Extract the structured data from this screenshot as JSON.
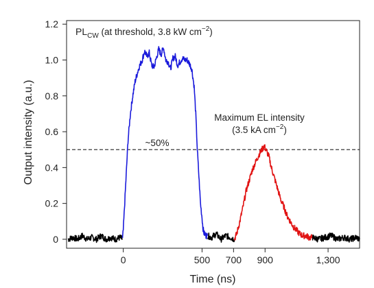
{
  "chart_data": {
    "type": "line",
    "xlabel": "Time (ns)",
    "ylabel": "Output intensity (a.u.)",
    "xlim": [
      -360,
      1500
    ],
    "ylim": [
      -0.05,
      1.22
    ],
    "x_ticks": [
      0,
      500,
      700,
      900,
      1300
    ],
    "x_tick_labels": [
      "0",
      "500",
      "700",
      "900",
      "1,300"
    ],
    "y_ticks": [
      0,
      0.2,
      0.4,
      0.6,
      0.8,
      1.0,
      1.2
    ],
    "y_tick_labels": [
      "0",
      "0.2",
      "0.4",
      "0.6",
      "0.8",
      "1.0",
      "1.2"
    ],
    "grid": false,
    "annotations": {
      "pl_main": "PL",
      "pl_sub": "CW",
      "pl_rest": " (at threshold, 3.8 kW cm",
      "pl_sup": "−2",
      "pl_close": ")",
      "el_line1": "Maximum EL intensity",
      "el_line2_main": "(3.5 kA cm",
      "el_line2_sup": "−2",
      "el_line2_close": ")",
      "half_label": "~50%"
    },
    "threshold_line": {
      "y": 0.5,
      "style": "dashed"
    },
    "series": [
      {
        "color": "#000000",
        "x": [
          -350,
          -320,
          -290,
          -260,
          -230,
          -200,
          -170,
          -140,
          -110,
          -80,
          -50,
          -20,
          -5
        ],
        "y": [
          0.0,
          0.01,
          0.0,
          0.02,
          0.0,
          0.01,
          0.0,
          0.02,
          0.0,
          0.01,
          0.0,
          0.01,
          0.0
        ]
      },
      {
        "color": "#1a1adb",
        "x": [
          -5,
          0,
          15,
          30,
          45,
          60,
          75,
          90,
          100,
          110,
          120,
          135,
          150,
          165,
          180,
          195,
          210,
          225,
          240,
          255,
          270,
          285,
          300,
          315,
          330,
          345,
          360,
          375,
          390,
          405,
          420,
          435,
          450,
          460,
          470,
          480,
          490,
          500,
          505,
          510,
          515,
          520,
          525,
          530,
          535
        ],
        "y": [
          0.0,
          0.05,
          0.3,
          0.55,
          0.7,
          0.8,
          0.88,
          0.93,
          0.96,
          0.98,
          1.0,
          1.05,
          1.02,
          1.04,
          0.97,
          0.96,
          1.01,
          1.06,
          1.03,
          1.07,
          1.0,
          0.99,
          0.95,
          1.01,
          1.02,
          0.97,
          0.99,
          1.01,
          1.0,
          1.0,
          0.98,
          0.95,
          0.85,
          0.7,
          0.5,
          0.35,
          0.2,
          0.12,
          0.07,
          0.04,
          0.03,
          0.03,
          0.02,
          0.02,
          0.02
        ]
      },
      {
        "color": "#000000",
        "x": [
          535,
          560,
          590,
          620,
          650,
          680,
          705
        ],
        "y": [
          0.02,
          0.01,
          0.03,
          0.0,
          0.02,
          0.01,
          0.0
        ]
      },
      {
        "color": "#e11414",
        "x": [
          705,
          720,
          740,
          760,
          780,
          800,
          820,
          840,
          860,
          880,
          895,
          910,
          925,
          940,
          960,
          980,
          1000,
          1020,
          1040,
          1060,
          1080,
          1100,
          1120,
          1140,
          1160,
          1180,
          1200
        ],
        "y": [
          0.0,
          0.03,
          0.1,
          0.18,
          0.27,
          0.33,
          0.39,
          0.43,
          0.47,
          0.5,
          0.52,
          0.49,
          0.46,
          0.4,
          0.34,
          0.28,
          0.22,
          0.18,
          0.13,
          0.1,
          0.07,
          0.05,
          0.03,
          0.02,
          0.02,
          0.01,
          0.01
        ]
      },
      {
        "color": "#000000",
        "x": [
          1200,
          1240,
          1280,
          1320,
          1360,
          1400,
          1440,
          1480,
          1500
        ],
        "y": [
          0.01,
          0.0,
          0.01,
          0.02,
          0.0,
          0.01,
          0.0,
          0.01,
          0.0
        ]
      }
    ]
  }
}
